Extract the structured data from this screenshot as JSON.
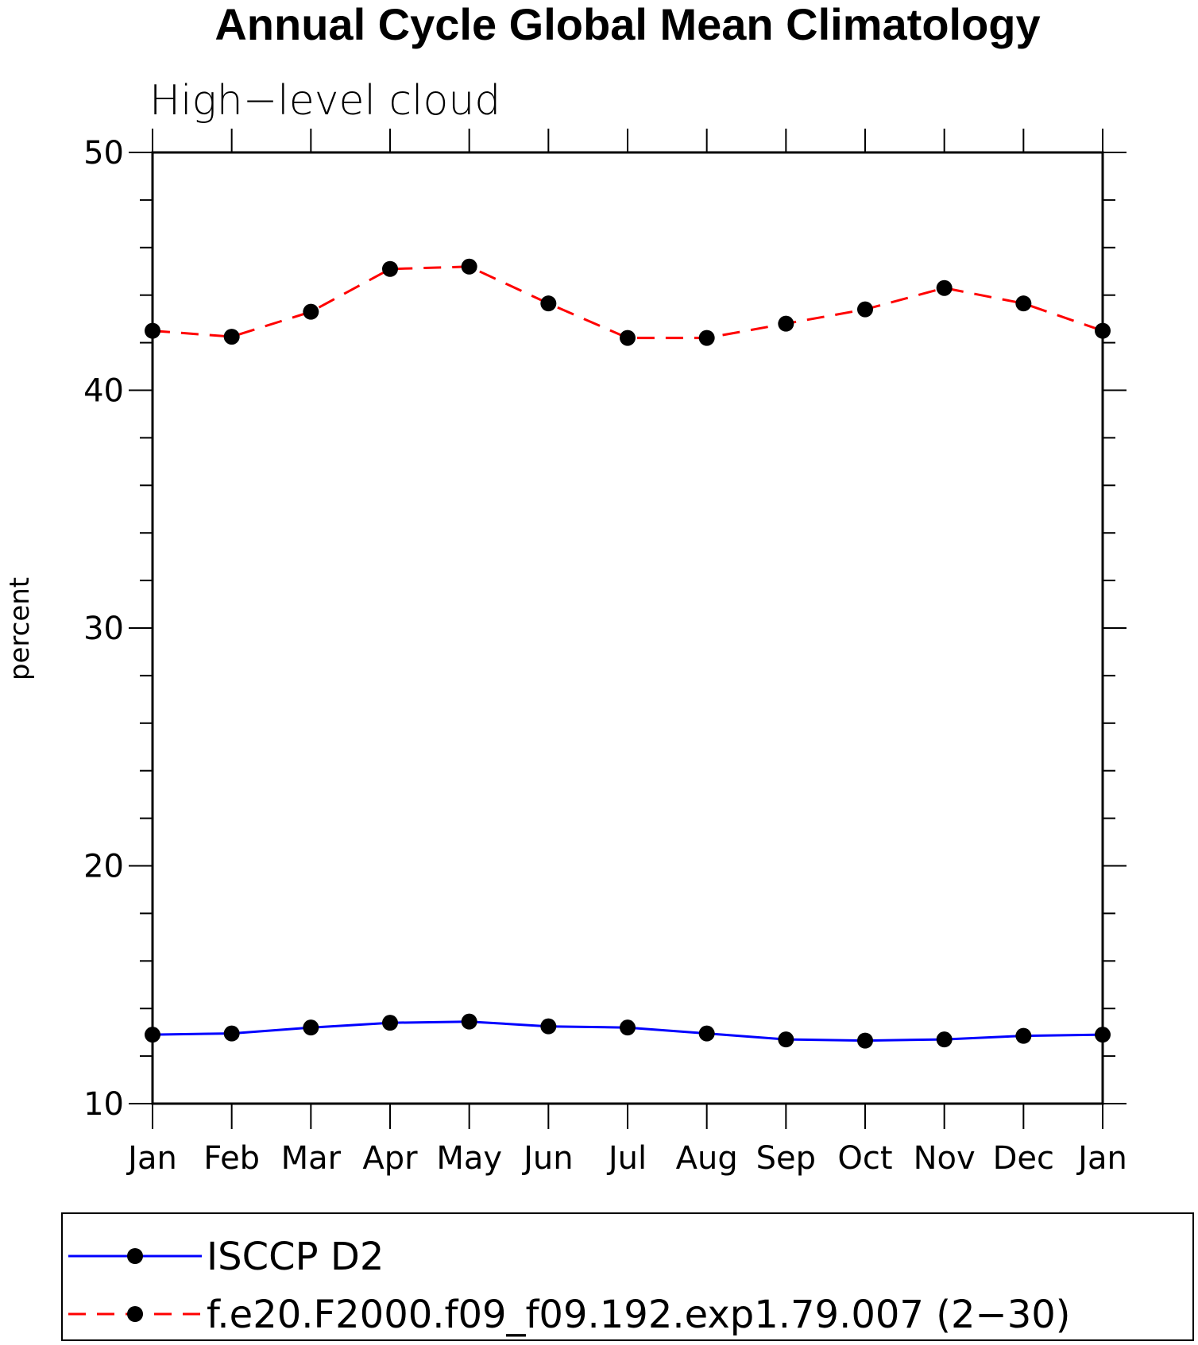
{
  "chart_data": {
    "type": "line",
    "title": "Annual Cycle Global Mean Climatology",
    "subtitle": "High−level cloud",
    "ylabel": "percent",
    "xlabel": "",
    "ylim": [
      10,
      50
    ],
    "yticks": [
      10,
      20,
      30,
      40,
      50
    ],
    "categories": [
      "Jan",
      "Feb",
      "Mar",
      "Apr",
      "May",
      "Jun",
      "Jul",
      "Aug",
      "Sep",
      "Oct",
      "Nov",
      "Dec",
      "Jan"
    ],
    "grid": false,
    "legend_position": "bottom",
    "series": [
      {
        "name": "ISCCP D2",
        "color": "#0000ff",
        "line_style": "solid",
        "marker": "filled-circle",
        "values": [
          12.9,
          12.95,
          13.2,
          13.4,
          13.45,
          13.25,
          13.2,
          12.95,
          12.7,
          12.65,
          12.7,
          12.85,
          12.9
        ]
      },
      {
        "name": "f.e20.F2000.f09_f09.192.exp1.79.007 (2−30)",
        "color": "#ff0000",
        "line_style": "dashed",
        "marker": "filled-circle",
        "values": [
          42.5,
          42.25,
          43.3,
          45.1,
          45.2,
          43.65,
          42.2,
          42.2,
          42.8,
          43.4,
          44.3,
          43.65,
          42.5
        ]
      }
    ]
  }
}
